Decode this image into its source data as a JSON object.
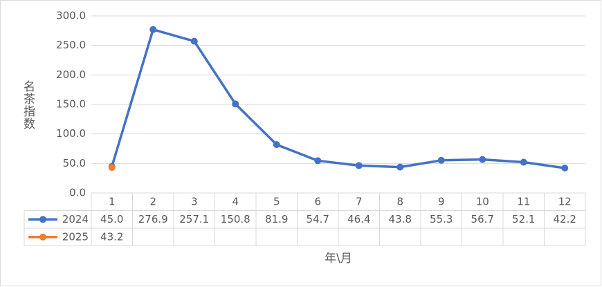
{
  "chart_data": {
    "type": "line",
    "y_label": "名茶指数",
    "x_label": "年\\月",
    "categories": [
      "1",
      "2",
      "3",
      "4",
      "5",
      "6",
      "7",
      "8",
      "9",
      "10",
      "11",
      "12"
    ],
    "series": [
      {
        "name": "2024",
        "color": "#4472c4",
        "values": [
          45.0,
          276.9,
          257.1,
          150.8,
          81.9,
          54.7,
          46.4,
          43.8,
          55.3,
          56.7,
          52.1,
          42.2
        ],
        "value_labels": [
          "45.0",
          "276.9",
          "257.1",
          "150.8",
          "81.9",
          "54.7",
          "46.4",
          "43.8",
          "55.3",
          "56.7",
          "52.1",
          "42.2"
        ]
      },
      {
        "name": "2025",
        "color": "#ed7d31",
        "values": [
          43.2,
          null,
          null,
          null,
          null,
          null,
          null,
          null,
          null,
          null,
          null,
          null
        ],
        "value_labels": [
          "43.2",
          null,
          null,
          null,
          null,
          null,
          null,
          null,
          null,
          null,
          null,
          null
        ]
      }
    ],
    "ylim": [
      0,
      300
    ],
    "yticks": [
      {
        "value": 0,
        "label": "0.0"
      },
      {
        "value": 50,
        "label": "50.0"
      },
      {
        "value": 100,
        "label": "100.0"
      },
      {
        "value": 150,
        "label": "150.0"
      },
      {
        "value": 200,
        "label": "200.0"
      },
      {
        "value": 250,
        "label": "250.0"
      },
      {
        "value": 300,
        "label": "300.0"
      }
    ],
    "grid": true
  }
}
